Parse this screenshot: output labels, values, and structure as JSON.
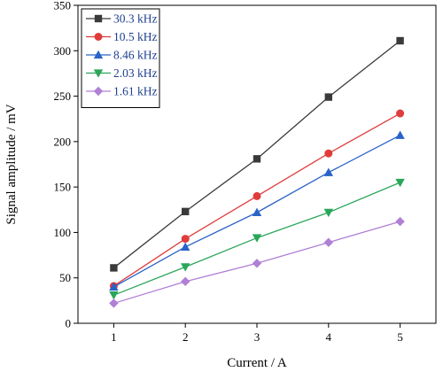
{
  "chart_data": {
    "type": "line",
    "title": "",
    "xlabel": "Current / A",
    "ylabel": "Signal amplitude / mV",
    "x": [
      1,
      2,
      3,
      4,
      5
    ],
    "xlim": [
      0.5,
      5.5
    ],
    "ylim": [
      0,
      350
    ],
    "xticks": [
      "1",
      "2",
      "3",
      "4",
      "5"
    ],
    "yticks": [
      "0",
      "50",
      "100",
      "150",
      "200",
      "250",
      "300",
      "350"
    ],
    "grid": false,
    "legend_position": "top-left",
    "series": [
      {
        "name": "30.3 kHz",
        "color": "#3a3a3a",
        "marker": "square",
        "values": [
          61,
          123,
          181,
          249,
          311
        ]
      },
      {
        "name": "10.5 kHz",
        "color": "#e03c3c",
        "marker": "circle",
        "values": [
          41,
          93,
          140,
          187,
          231
        ]
      },
      {
        "name": "8.46 kHz",
        "color": "#2a63c8",
        "marker": "triangle-up",
        "values": [
          40,
          84,
          122,
          166,
          207
        ]
      },
      {
        "name": "2.03 kHz",
        "color": "#2aa65a",
        "marker": "triangle-down",
        "values": [
          31,
          62,
          94,
          122,
          155
        ]
      },
      {
        "name": "1.61 kHz",
        "color": "#b07fd6",
        "marker": "diamond",
        "values": [
          22,
          46,
          66,
          89,
          112
        ]
      }
    ]
  }
}
